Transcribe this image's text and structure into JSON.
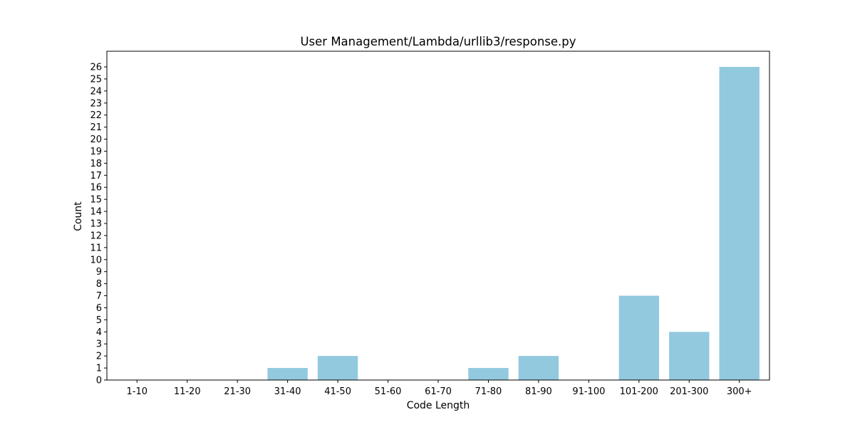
{
  "chart_data": {
    "type": "bar",
    "title": "User Management/Lambda/urllib3/response.py",
    "xlabel": "Code Length",
    "ylabel": "Count",
    "categories": [
      "1-10",
      "11-20",
      "21-30",
      "31-40",
      "41-50",
      "51-60",
      "61-70",
      "71-80",
      "81-90",
      "91-100",
      "101-200",
      "201-300",
      "300+"
    ],
    "values": [
      0,
      0,
      0,
      1,
      2,
      0,
      0,
      1,
      2,
      0,
      7,
      4,
      26
    ],
    "ylim": [
      0,
      27.3
    ],
    "yticks": [
      0,
      1,
      2,
      3,
      4,
      5,
      6,
      7,
      8,
      9,
      10,
      11,
      12,
      13,
      14,
      15,
      16,
      17,
      18,
      19,
      20,
      21,
      22,
      23,
      24,
      25,
      26
    ],
    "bar_color": "#92c9df",
    "grid": false,
    "legend": "none"
  }
}
